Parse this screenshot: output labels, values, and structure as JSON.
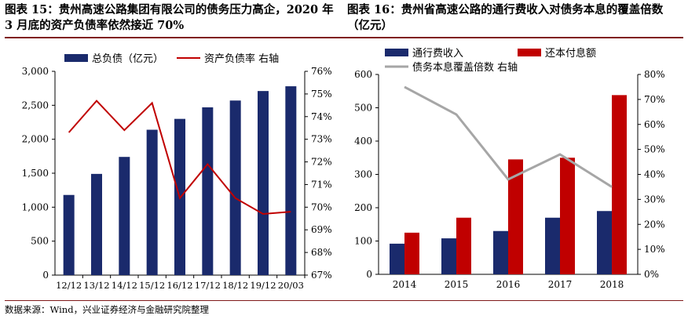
{
  "titles": {
    "left": "图表 15：贵州高速公路集团有限公司的债务压力高企，2020 年 3 月底的资产负债率依然接近 70%",
    "right": "图表 16：贵州省高速公路的通行费收入对债务本息的覆盖倍数（亿元）"
  },
  "source": "数据来源：Wind，兴业证券经济与金融研究院整理",
  "colors": {
    "navy": "#1a2a6c",
    "red": "#c00000",
    "gray": "#a6a6a6",
    "rule": "#7f1a1a"
  },
  "chart_data": [
    {
      "type": "bar+line",
      "categories": [
        "12/12",
        "13/12",
        "14/12",
        "15/12",
        "16/12",
        "17/12",
        "18/12",
        "19/12",
        "20/03"
      ],
      "series": [
        {
          "name": "总负债（亿元）",
          "type": "bar",
          "axis": "left",
          "values": [
            1180,
            1490,
            1740,
            2140,
            2300,
            2470,
            2570,
            2710,
            2780
          ]
        },
        {
          "name": "资产负债率 右轴",
          "type": "line",
          "axis": "right",
          "values": [
            73.3,
            74.7,
            73.4,
            74.6,
            70.4,
            71.9,
            70.4,
            69.7,
            69.8
          ]
        }
      ],
      "left_axis": {
        "min": 0,
        "max": 3000,
        "ticks": [
          "0",
          "500",
          "1,000",
          "1,500",
          "2,000",
          "2,500",
          "3,000"
        ]
      },
      "right_axis": {
        "min": 67,
        "max": 76,
        "ticks": [
          "67%",
          "68%",
          "69%",
          "70%",
          "71%",
          "72%",
          "73%",
          "74%",
          "75%",
          "76%"
        ]
      },
      "legend_position": "top",
      "grid": false
    },
    {
      "type": "bar+line",
      "categories": [
        "2014",
        "2015",
        "2016",
        "2017",
        "2018"
      ],
      "series": [
        {
          "name": "通行费收入",
          "type": "bar",
          "axis": "left",
          "values": [
            92,
            108,
            130,
            170,
            190
          ]
        },
        {
          "name": "还本付息额",
          "type": "bar",
          "axis": "left",
          "values": [
            125,
            170,
            345,
            350,
            538
          ]
        },
        {
          "name": "债务本息覆盖倍数 右轴",
          "type": "line",
          "axis": "right",
          "values": [
            75,
            64,
            38,
            48,
            35
          ]
        }
      ],
      "left_axis": {
        "min": 0,
        "max": 600,
        "ticks": [
          "0",
          "100",
          "200",
          "300",
          "400",
          "500",
          "600"
        ]
      },
      "right_axis": {
        "min": 0,
        "max": 80,
        "ticks": [
          "0%",
          "10%",
          "20%",
          "30%",
          "40%",
          "50%",
          "60%",
          "70%",
          "80%"
        ]
      },
      "legend_position": "top",
      "grid": false
    }
  ]
}
